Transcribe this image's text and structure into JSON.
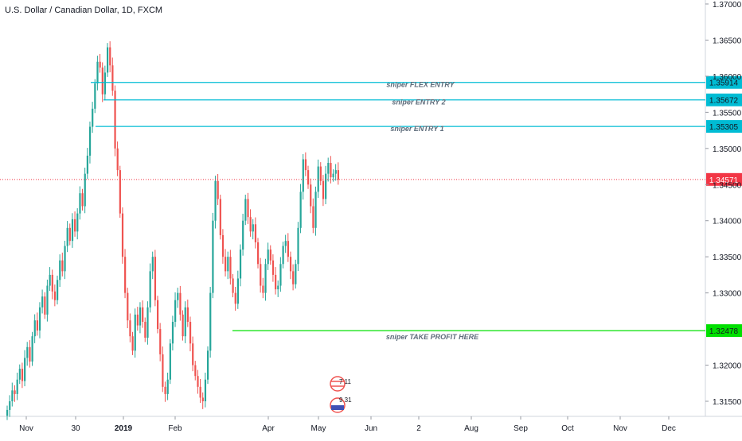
{
  "chart_data": {
    "type": "candlestick",
    "title": "U.S. Dollar / Canadian Dollar, 1D, FXCM",
    "xlabel": "",
    "ylabel": "",
    "ylim": [
      1.3125,
      1.3705
    ],
    "grid": false,
    "y_ticks": [
      "1.37000",
      "1.36500",
      "1.36000",
      "1.35500",
      "1.35000",
      "1.34500",
      "1.34000",
      "1.33500",
      "1.33000",
      "1.32000",
      "1.31500"
    ],
    "x_ticks": [
      "Nov",
      "30",
      "2019",
      "Feb",
      "Apr",
      "May",
      "Jun",
      "2",
      "Aug",
      "Sep",
      "Oct",
      "Nov",
      "Dec"
    ],
    "last_price": "1.34571",
    "levels": [
      {
        "name": "sniper FLEX ENTRY",
        "value": 1.35914,
        "label": "1.35914",
        "color": "#00bcd4"
      },
      {
        "name": "sniper ENTRY 2",
        "value": 1.35672,
        "label": "1.35672",
        "color": "#00bcd4"
      },
      {
        "name": "sniper ENTRY 1",
        "value": 1.35305,
        "label": "1.35305",
        "color": "#00bcd4"
      },
      {
        "name": "sniper TAKE PROFIT HERE",
        "value": 1.32478,
        "label": "1.32478",
        "color": "#00e000"
      }
    ],
    "closes": [
      1.3138,
      1.315,
      1.3165,
      1.316,
      1.318,
      1.3195,
      1.3178,
      1.321,
      1.3225,
      1.3205,
      1.324,
      1.3262,
      1.3248,
      1.328,
      1.3295,
      1.327,
      1.331,
      1.3325,
      1.3302,
      1.329,
      1.3318,
      1.3345,
      1.333,
      1.3365,
      1.339,
      1.3372,
      1.3402,
      1.3385,
      1.341,
      1.3438,
      1.342,
      1.3465,
      1.349,
      1.353,
      1.3555,
      1.359,
      1.362,
      1.3612,
      1.3575,
      1.3605,
      1.364,
      1.3615,
      1.358,
      1.35,
      1.347,
      1.341,
      1.335,
      1.33,
      1.3262,
      1.324,
      1.322,
      1.327,
      1.3255,
      1.328,
      1.326,
      1.3238,
      1.328,
      1.333,
      1.335,
      1.329,
      1.325,
      1.3215,
      1.317,
      1.316,
      1.318,
      1.323,
      1.326,
      1.329,
      1.33,
      1.327,
      1.324,
      1.328,
      1.326,
      1.323,
      1.32,
      1.3185,
      1.317,
      1.3155,
      1.315,
      1.318,
      1.322,
      1.33,
      1.34,
      1.3455,
      1.343,
      1.338,
      1.335,
      1.333,
      1.335,
      1.332,
      1.33,
      1.3285,
      1.332,
      1.336,
      1.34,
      1.343,
      1.3405,
      1.3385,
      1.3395,
      1.337,
      1.334,
      1.331,
      1.33,
      1.334,
      1.336,
      1.3345,
      1.3325,
      1.3305,
      1.331,
      1.334,
      1.3365,
      1.3372,
      1.335,
      1.333,
      1.3312,
      1.334,
      1.339,
      1.344,
      1.3485,
      1.347,
      1.345,
      1.342,
      1.339,
      1.344,
      1.3475,
      1.3455,
      1.343,
      1.3465,
      1.348,
      1.346,
      1.3465,
      1.347,
      1.3457
    ]
  },
  "badge": {
    "top": "7 11",
    "bottom": "9 31"
  },
  "colors": {
    "up": "#26a69a",
    "down": "#ef5350",
    "entry": "#00bcd4",
    "tp": "#00e000",
    "last": "#f23645"
  }
}
